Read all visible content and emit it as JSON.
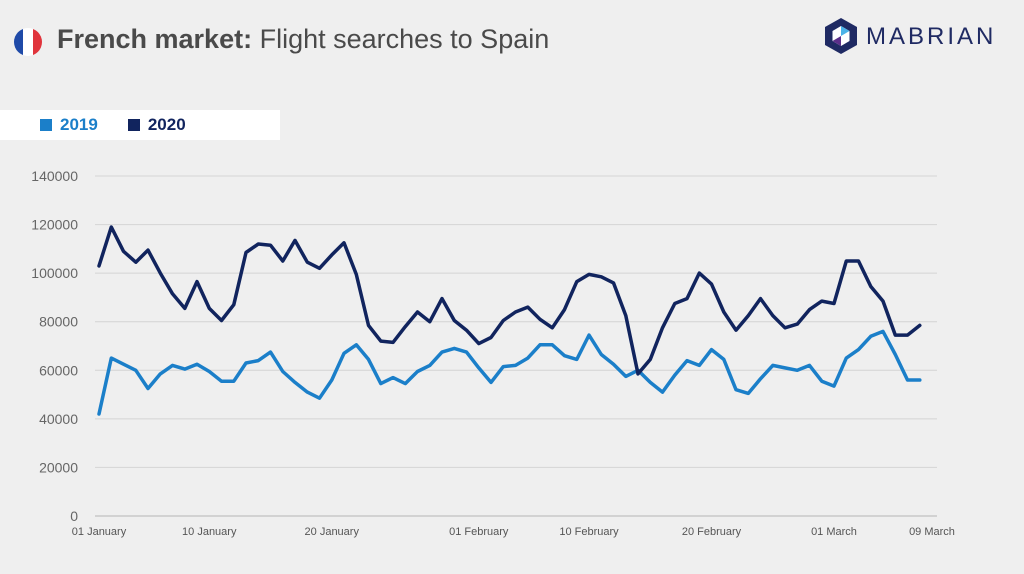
{
  "header": {
    "title_bold": "French market:",
    "title_rest": " Flight searches to Spain",
    "flag_colors": [
      "#1f4aa8",
      "#ffffff",
      "#e0343c"
    ],
    "logo_text": "MABRIAN",
    "logo_colors": [
      "#1f2a63",
      "#2d7fd0",
      "#4bb3e8",
      "#5b2f8a"
    ]
  },
  "legend": [
    {
      "label": "2019",
      "color": "#1b7fc9"
    },
    {
      "label": "2020",
      "color": "#11245e"
    }
  ],
  "chart_data": {
    "type": "line",
    "ylim": [
      0,
      140000
    ],
    "yticks": [
      0,
      20000,
      40000,
      60000,
      80000,
      100000,
      120000,
      140000
    ],
    "xlim": [
      0,
      68
    ],
    "xticks": [
      {
        "i": 0,
        "label": "01 January"
      },
      {
        "i": 9,
        "label": "10 January"
      },
      {
        "i": 19,
        "label": "20 January"
      },
      {
        "i": 31,
        "label": "01 February"
      },
      {
        "i": 40,
        "label": "10 February"
      },
      {
        "i": 50,
        "label": "20 February"
      },
      {
        "i": 60,
        "label": "01 March"
      },
      {
        "i": 68,
        "label": "09 March"
      }
    ],
    "grid": true,
    "legend_position": "top-left",
    "series": [
      {
        "name": "2019",
        "color": "#1b7fc9",
        "values": [
          42000,
          65000,
          62500,
          60000,
          52500,
          58500,
          62000,
          60500,
          62500,
          59500,
          55500,
          55500,
          63000,
          64000,
          67500,
          59500,
          55000,
          51000,
          48500,
          56000,
          67000,
          70500,
          64500,
          54500,
          57000,
          54500,
          59500,
          62000,
          67500,
          69000,
          67500,
          61000,
          55000,
          61500,
          62000,
          65000,
          70500,
          70500,
          66000,
          64500,
          74500,
          66500,
          62500,
          57500,
          60000,
          55000,
          51000,
          58000,
          64000,
          62000,
          68500,
          64500,
          52000,
          50500,
          56500,
          62000,
          61000,
          60000,
          62000,
          55500,
          53500,
          65000,
          68500,
          74000,
          76000,
          66500,
          56000,
          56000
        ]
      },
      {
        "name": "2020",
        "color": "#11245e",
        "values": [
          103000,
          119000,
          109000,
          104500,
          109500,
          100000,
          91500,
          85500,
          96500,
          85500,
          80500,
          87000,
          108500,
          112000,
          111500,
          105000,
          113500,
          104500,
          102000,
          107500,
          112500,
          99500,
          78500,
          72000,
          71500,
          78000,
          84000,
          80000,
          89500,
          80500,
          76500,
          71000,
          73500,
          80500,
          84000,
          86000,
          81000,
          77500,
          85000,
          96500,
          99500,
          98500,
          96000,
          82500,
          58500,
          64500,
          77500,
          87500,
          89500,
          100000,
          95500,
          84000,
          76500,
          82500,
          89500,
          82500,
          77500,
          79000,
          85000,
          88500,
          87500,
          105000,
          105000,
          94500,
          88500,
          74500,
          74500,
          78500
        ]
      }
    ]
  }
}
